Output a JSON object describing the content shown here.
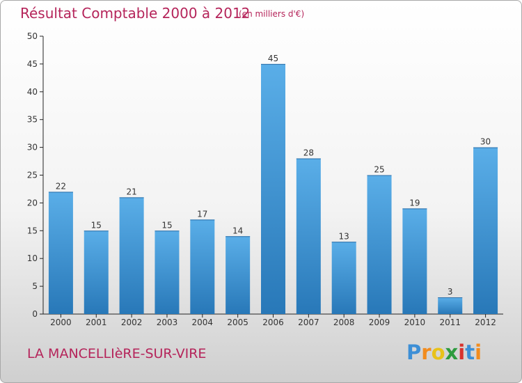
{
  "chart_data": {
    "type": "bar",
    "title": "Résultat Comptable 2000 à 2012",
    "subtitle": "(en milliers d'€)",
    "categories": [
      "2000",
      "2001",
      "2002",
      "2003",
      "2004",
      "2005",
      "2006",
      "2007",
      "2008",
      "2009",
      "2010",
      "2011",
      "2012"
    ],
    "values": [
      22,
      15,
      21,
      15,
      17,
      14,
      45,
      28,
      13,
      25,
      19,
      3,
      30
    ],
    "ylim": [
      0,
      50
    ],
    "yticks": [
      0,
      5,
      10,
      15,
      20,
      25,
      30,
      35,
      40,
      45,
      50
    ],
    "xlabel": "",
    "ylabel": "",
    "grid": false,
    "bar_color_top": "#5aaee8",
    "bar_color_bottom": "#2878b8"
  },
  "location": "LA MANCELLIèRE-SUR-VIRE",
  "brand": {
    "name": "Proxiti",
    "letters": [
      "P",
      "r",
      "o",
      "x",
      "i",
      "t",
      "i"
    ],
    "colors": [
      "#3d8fd6",
      "#f28c1e",
      "#e8c21a",
      "#2e9b3e",
      "#d8322e",
      "#3d8fd6",
      "#f28c1e"
    ]
  },
  "colors": {
    "accent": "#b5245a",
    "axis": "#222222"
  }
}
